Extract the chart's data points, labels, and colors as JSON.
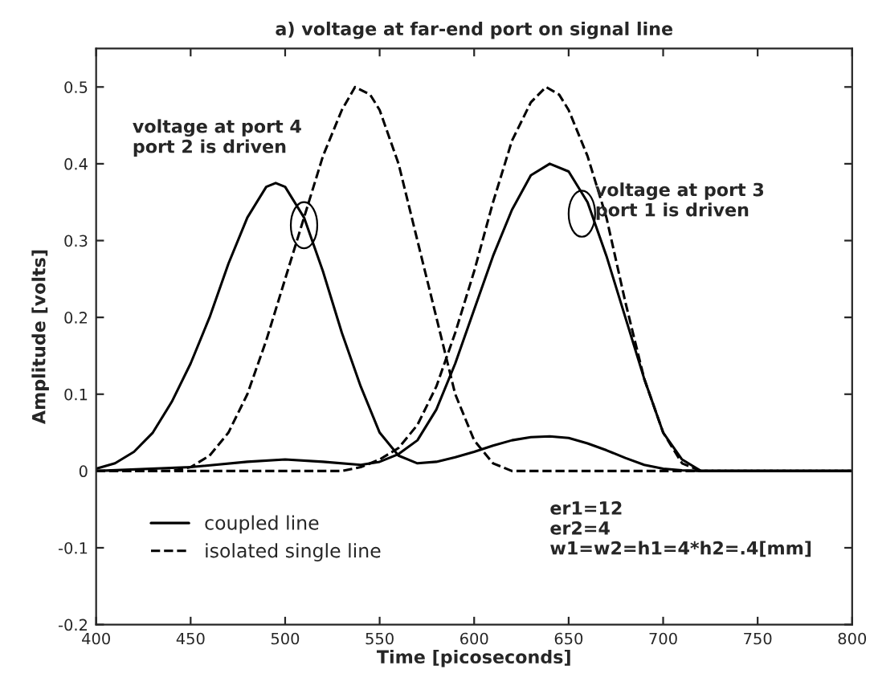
{
  "chart_data": {
    "type": "line",
    "title": "a) voltage at far-end port on signal line",
    "xlabel": "Time [picoseconds]",
    "ylabel": "Amplitude [volts]",
    "xlim": [
      400,
      800
    ],
    "xticks": [
      400,
      450,
      500,
      550,
      600,
      650,
      700,
      750,
      800
    ],
    "ylim": [
      -0.2,
      0.55
    ],
    "yticks": [
      -0.2,
      -0.1,
      0,
      0.1,
      0.2,
      0.3,
      0.4,
      0.5
    ],
    "grid": false,
    "legend": "bottom left",
    "marker": "none",
    "annotations": [
      "voltage at port 4\nport 2 is driven",
      "voltage at port 3\nport 1 is driven",
      "er1=12\ner2=4\nw1=w2=h1=4*h2=.4[mm]"
    ],
    "series": [
      {
        "name": "coupled line",
        "color": "#000000",
        "line_style": "solid",
        "x": [
          400,
          410,
          420,
          430,
          440,
          450,
          460,
          470,
          480,
          490,
          495,
          500,
          510,
          520,
          530,
          540,
          550,
          560,
          570,
          580,
          590,
          600,
          610,
          620,
          630,
          640,
          650,
          660,
          670,
          680,
          690,
          700,
          710,
          720,
          800
        ],
        "values": [
          0.003,
          0.01,
          0.025,
          0.05,
          0.09,
          0.14,
          0.2,
          0.27,
          0.33,
          0.37,
          0.375,
          0.37,
          0.33,
          0.26,
          0.18,
          0.11,
          0.05,
          0.02,
          0.01,
          0.012,
          0.018,
          0.025,
          0.033,
          0.04,
          0.044,
          0.045,
          0.043,
          0.036,
          0.027,
          0.017,
          0.008,
          0.003,
          0.001,
          0,
          0
        ]
      },
      {
        "color": "#000000",
        "line_style": "solid",
        "x": [
          400,
          450,
          480,
          500,
          520,
          540,
          550,
          560,
          570,
          580,
          590,
          600,
          610,
          620,
          630,
          640,
          650,
          660,
          670,
          680,
          690,
          700,
          710,
          720,
          800
        ],
        "values": [
          0,
          0.005,
          0.012,
          0.015,
          0.012,
          0.008,
          0.012,
          0.022,
          0.04,
          0.08,
          0.14,
          0.21,
          0.28,
          0.34,
          0.385,
          0.4,
          0.39,
          0.35,
          0.28,
          0.2,
          0.12,
          0.05,
          0.015,
          0,
          0
        ]
      },
      {
        "name": "isolated single line",
        "color": "#000000",
        "line_style": "dashed",
        "x": [
          400,
          440,
          450,
          460,
          470,
          480,
          490,
          500,
          510,
          520,
          530,
          537,
          545,
          550,
          560,
          570,
          580,
          590,
          600,
          610,
          620,
          800
        ],
        "values": [
          0,
          0,
          0.005,
          0.02,
          0.05,
          0.1,
          0.17,
          0.25,
          0.33,
          0.41,
          0.47,
          0.5,
          0.49,
          0.47,
          0.4,
          0.3,
          0.2,
          0.1,
          0.04,
          0.01,
          0,
          0
        ]
      },
      {
        "color": "#000000",
        "line_style": "dashed",
        "x": [
          400,
          530,
          540,
          550,
          560,
          570,
          580,
          590,
          600,
          610,
          620,
          630,
          638,
          645,
          650,
          660,
          670,
          680,
          690,
          700,
          710,
          720,
          800
        ],
        "values": [
          0,
          0,
          0.005,
          0.015,
          0.03,
          0.06,
          0.11,
          0.18,
          0.26,
          0.35,
          0.43,
          0.48,
          0.5,
          0.49,
          0.47,
          0.41,
          0.33,
          0.22,
          0.12,
          0.05,
          0.01,
          0,
          0
        ]
      }
    ]
  }
}
